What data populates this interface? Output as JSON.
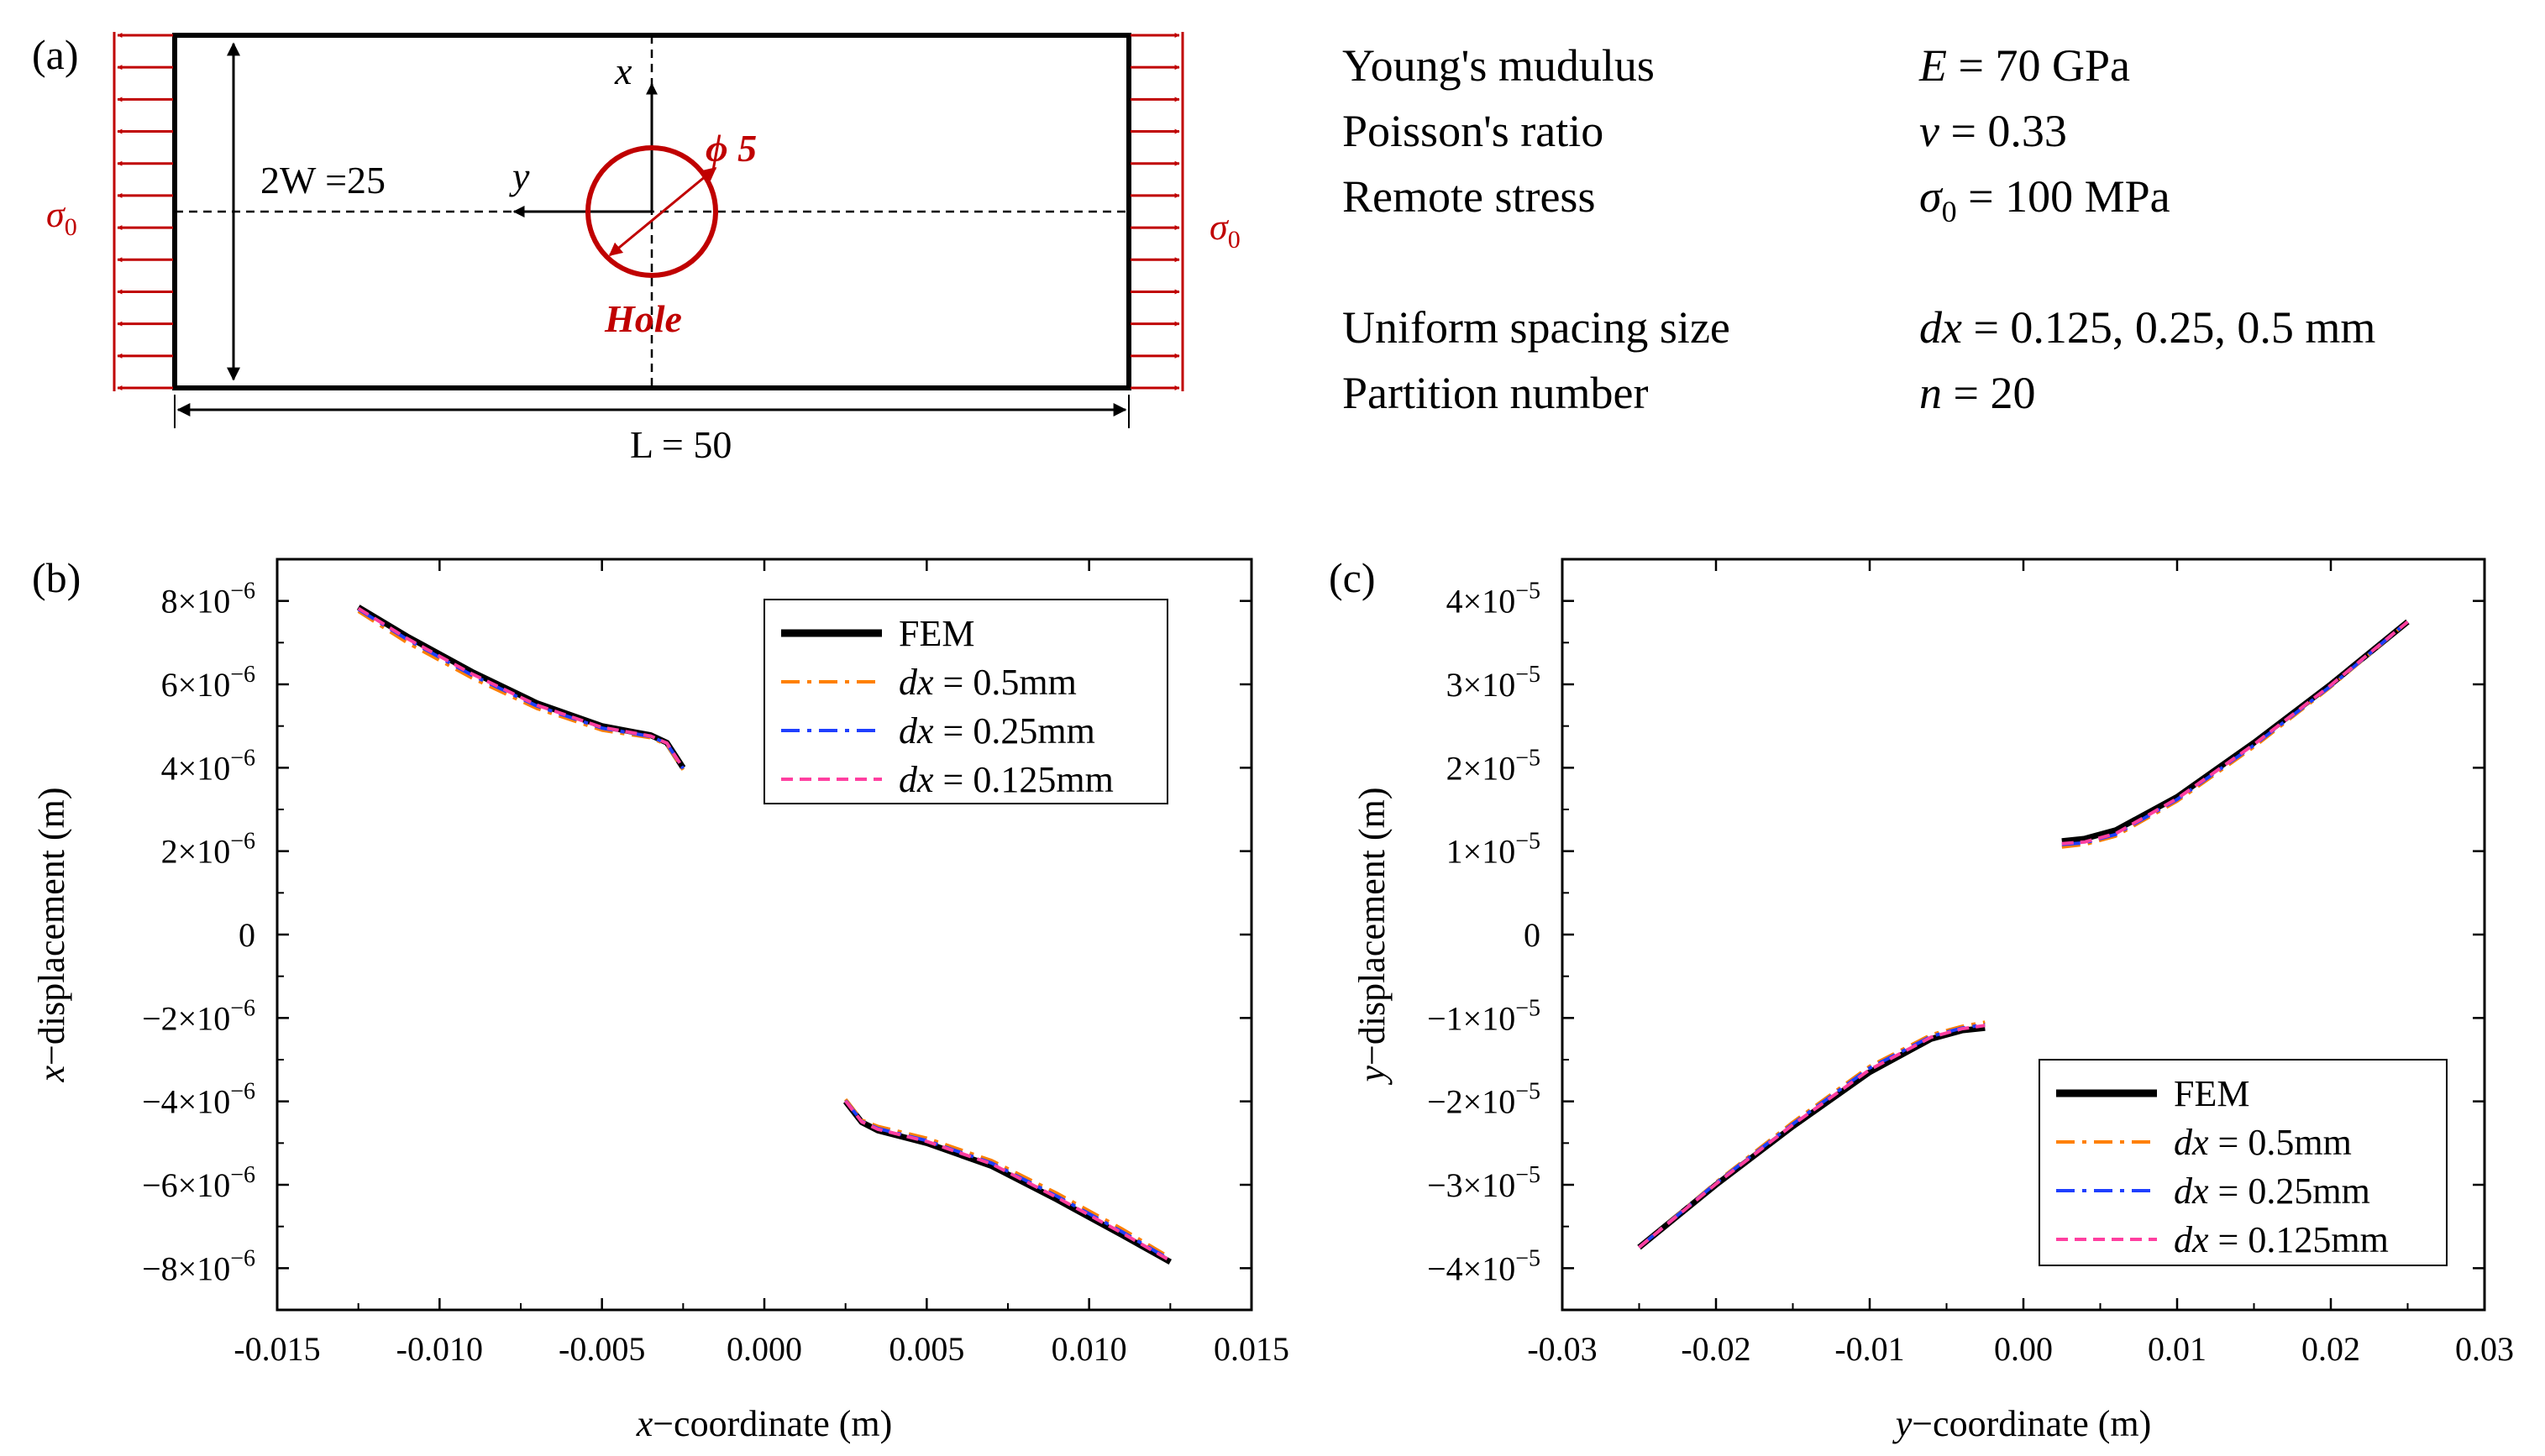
{
  "panel_a": {
    "label": "(a)",
    "x_axis_label": "x",
    "y_axis_label": "y",
    "diameter_label": "ϕ 5",
    "hole_label": "Hole",
    "width_label": "2W =25",
    "length_label": "L = 50",
    "stress_left": "σ0",
    "stress_right": "σ0",
    "colors": {
      "load": "#c00000",
      "plate": "#000000"
    },
    "parameters": [
      {
        "name": "Young's mudulus",
        "value": "E = 70 GPa"
      },
      {
        "name": "Poisson's ratio",
        "value": "ν = 0.33"
      },
      {
        "name": "Remote stress",
        "value": "σ0 = 100 MPa"
      },
      {
        "name": "Uniform spacing size",
        "value": "dx = 0.125, 0.25, 0.5 mm"
      },
      {
        "name": "Partition number",
        "value": "n = 20"
      }
    ]
  },
  "chart_data": [
    {
      "panel": "(b)",
      "type": "line",
      "xlabel": "x−coordinate (m)",
      "ylabel": "x−displacement (m)",
      "xlim": [
        -0.015,
        0.015
      ],
      "ylim": [
        -9e-06,
        9e-06
      ],
      "xticks": [
        -0.015,
        -0.01,
        -0.005,
        0.0,
        0.005,
        0.01,
        0.015
      ],
      "xtick_labels": [
        "-0.015",
        "-0.010",
        "-0.005",
        "0.000",
        "0.005",
        "0.010",
        "0.015"
      ],
      "yticks": [
        8e-06,
        6e-06,
        4e-06,
        2e-06,
        0,
        -2e-06,
        -4e-06,
        -6e-06,
        -8e-06
      ],
      "ytick_labels": [
        {
          "sign": "",
          "mant": "8×10",
          "exp": "−6"
        },
        {
          "sign": "",
          "mant": "6×10",
          "exp": "−6"
        },
        {
          "sign": "",
          "mant": "4×10",
          "exp": "−6"
        },
        {
          "sign": "",
          "mant": "2×10",
          "exp": "−6"
        },
        {
          "sign": "",
          "mant": "0",
          "exp": ""
        },
        {
          "sign": "−",
          "mant": "2×10",
          "exp": "−6"
        },
        {
          "sign": "−",
          "mant": "4×10",
          "exp": "−6"
        },
        {
          "sign": "−",
          "mant": "6×10",
          "exp": "−6"
        },
        {
          "sign": "−",
          "mant": "8×10",
          "exp": "−6"
        }
      ],
      "legend_position": "top-right",
      "series": [
        {
          "name": "FEM",
          "legend_var": "",
          "legend_rest": "FEM",
          "color": "#000000",
          "style": "solid",
          "segments": [
            [
              [
                -0.0125,
                7.85e-06
              ],
              [
                -0.011,
                7.15e-06
              ],
              [
                -0.009,
                6.3e-06
              ],
              [
                -0.007,
                5.55e-06
              ],
              [
                -0.005,
                5e-06
              ],
              [
                -0.0035,
                4.78e-06
              ],
              [
                -0.003,
                4.6e-06
              ],
              [
                -0.0025,
                4e-06
              ]
            ],
            [
              [
                0.0025,
                -4e-06
              ],
              [
                0.003,
                -4.5e-06
              ],
              [
                0.0035,
                -4.7e-06
              ],
              [
                0.005,
                -5e-06
              ],
              [
                0.007,
                -5.55e-06
              ],
              [
                0.009,
                -6.35e-06
              ],
              [
                0.011,
                -7.2e-06
              ],
              [
                0.0125,
                -7.85e-06
              ]
            ]
          ]
        },
        {
          "name": "dx = 0.5mm",
          "legend_var": "dx",
          "legend_rest": " = 0.5mm",
          "color": "#ff8000",
          "style": "dashdot",
          "segments": [
            [
              [
                -0.0125,
                7.75e-06
              ],
              [
                -0.011,
                7e-06
              ],
              [
                -0.009,
                6.15e-06
              ],
              [
                -0.007,
                5.42e-06
              ],
              [
                -0.005,
                4.9e-06
              ],
              [
                -0.0035,
                4.72e-06
              ],
              [
                -0.003,
                4.55e-06
              ],
              [
                -0.0025,
                3.95e-06
              ]
            ],
            [
              [
                0.0025,
                -3.95e-06
              ],
              [
                0.003,
                -4.45e-06
              ],
              [
                0.0035,
                -4.6e-06
              ],
              [
                0.005,
                -4.88e-06
              ],
              [
                0.007,
                -5.42e-06
              ],
              [
                0.009,
                -6.2e-06
              ],
              [
                0.011,
                -7.05e-06
              ],
              [
                0.0125,
                -7.75e-06
              ]
            ]
          ]
        },
        {
          "name": "dx = 0.25mm",
          "legend_var": "dx",
          "legend_rest": " = 0.25mm",
          "color": "#1f3fff",
          "style": "dashdot",
          "segments": [
            [
              [
                -0.0125,
                7.8e-06
              ],
              [
                -0.011,
                7.08e-06
              ],
              [
                -0.009,
                6.22e-06
              ],
              [
                -0.007,
                5.48e-06
              ],
              [
                -0.005,
                4.95e-06
              ],
              [
                -0.0035,
                4.75e-06
              ],
              [
                -0.003,
                4.58e-06
              ],
              [
                -0.0025,
                3.98e-06
              ]
            ],
            [
              [
                0.0025,
                -3.98e-06
              ],
              [
                0.003,
                -4.48e-06
              ],
              [
                0.0035,
                -4.65e-06
              ],
              [
                0.005,
                -4.94e-06
              ],
              [
                0.007,
                -5.48e-06
              ],
              [
                0.009,
                -6.27e-06
              ],
              [
                0.011,
                -7.12e-06
              ],
              [
                0.0125,
                -7.8e-06
              ]
            ]
          ]
        },
        {
          "name": "dx = 0.125mm",
          "legend_var": "dx",
          "legend_rest": " = 0.125mm",
          "color": "#ff3fa0",
          "style": "dashed",
          "segments": [
            [
              [
                -0.0125,
                7.82e-06
              ],
              [
                -0.011,
                7.1e-06
              ],
              [
                -0.009,
                6.25e-06
              ],
              [
                -0.007,
                5.5e-06
              ],
              [
                -0.005,
                4.97e-06
              ],
              [
                -0.0035,
                4.76e-06
              ],
              [
                -0.003,
                4.59e-06
              ],
              [
                -0.0025,
                3.99e-06
              ]
            ],
            [
              [
                0.0025,
                -3.99e-06
              ],
              [
                0.003,
                -4.49e-06
              ],
              [
                0.0035,
                -4.67e-06
              ],
              [
                0.005,
                -4.96e-06
              ],
              [
                0.007,
                -5.5e-06
              ],
              [
                0.009,
                -6.3e-06
              ],
              [
                0.011,
                -7.15e-06
              ],
              [
                0.0125,
                -7.82e-06
              ]
            ]
          ]
        }
      ]
    },
    {
      "panel": "(c)",
      "type": "line",
      "xlabel": "y−coordinate (m)",
      "ylabel": "y−displacement (m)",
      "xlim": [
        -0.03,
        0.03
      ],
      "ylim": [
        -4.5e-05,
        4.5e-05
      ],
      "xticks": [
        -0.03,
        -0.02,
        -0.01,
        0.0,
        0.01,
        0.02,
        0.03
      ],
      "xtick_labels": [
        "-0.03",
        "-0.02",
        "-0.01",
        "0.00",
        "0.01",
        "0.02",
        "0.03"
      ],
      "yticks": [
        4e-05,
        3e-05,
        2e-05,
        1e-05,
        0,
        -1e-05,
        -2e-05,
        -3e-05,
        -4e-05
      ],
      "ytick_labels": [
        {
          "sign": "",
          "mant": "4×10",
          "exp": "−5"
        },
        {
          "sign": "",
          "mant": "3×10",
          "exp": "−5"
        },
        {
          "sign": "",
          "mant": "2×10",
          "exp": "−5"
        },
        {
          "sign": "",
          "mant": "1×10",
          "exp": "−5"
        },
        {
          "sign": "",
          "mant": "0",
          "exp": ""
        },
        {
          "sign": "−",
          "mant": "1×10",
          "exp": "−5"
        },
        {
          "sign": "−",
          "mant": "2×10",
          "exp": "−5"
        },
        {
          "sign": "−",
          "mant": "3×10",
          "exp": "−5"
        },
        {
          "sign": "−",
          "mant": "4×10",
          "exp": "−5"
        }
      ],
      "legend_position": "bottom-right",
      "series": [
        {
          "name": "FEM",
          "legend_var": "",
          "legend_rest": "FEM",
          "color": "#000000",
          "style": "solid",
          "segments": [
            [
              [
                -0.025,
                -3.75e-05
              ],
              [
                -0.02,
                -3e-05
              ],
              [
                -0.015,
                -2.3e-05
              ],
              [
                -0.01,
                -1.65e-05
              ],
              [
                -0.006,
                -1.25e-05
              ],
              [
                -0.004,
                -1.15e-05
              ],
              [
                -0.0025,
                -1.12e-05
              ]
            ],
            [
              [
                0.0025,
                1.12e-05
              ],
              [
                0.004,
                1.15e-05
              ],
              [
                0.006,
                1.25e-05
              ],
              [
                0.01,
                1.65e-05
              ],
              [
                0.015,
                2.3e-05
              ],
              [
                0.02,
                3e-05
              ],
              [
                0.025,
                3.75e-05
              ]
            ]
          ]
        },
        {
          "name": "dx = 0.5mm",
          "legend_var": "dx",
          "legend_rest": " = 0.5mm",
          "color": "#ff8000",
          "style": "dashdot",
          "segments": [
            [
              [
                -0.025,
                -3.75e-05
              ],
              [
                -0.02,
                -2.97e-05
              ],
              [
                -0.015,
                -2.25e-05
              ],
              [
                -0.01,
                -1.58e-05
              ],
              [
                -0.006,
                -1.2e-05
              ],
              [
                -0.004,
                -1.1e-05
              ],
              [
                -0.0025,
                -1.05e-05
              ]
            ],
            [
              [
                0.0025,
                1.05e-05
              ],
              [
                0.004,
                1.08e-05
              ],
              [
                0.006,
                1.18e-05
              ],
              [
                0.01,
                1.6e-05
              ],
              [
                0.015,
                2.25e-05
              ],
              [
                0.02,
                2.97e-05
              ],
              [
                0.025,
                3.75e-05
              ]
            ]
          ]
        },
        {
          "name": "dx = 0.25mm",
          "legend_var": "dx",
          "legend_rest": " = 0.25mm",
          "color": "#1f3fff",
          "style": "dashdot",
          "segments": [
            [
              [
                -0.025,
                -3.75e-05
              ],
              [
                -0.02,
                -2.98e-05
              ],
              [
                -0.015,
                -2.27e-05
              ],
              [
                -0.01,
                -1.6e-05
              ],
              [
                -0.006,
                -1.22e-05
              ],
              [
                -0.004,
                -1.12e-05
              ],
              [
                -0.0025,
                -1.08e-05
              ]
            ],
            [
              [
                0.0025,
                1.08e-05
              ],
              [
                0.004,
                1.1e-05
              ],
              [
                0.006,
                1.2e-05
              ],
              [
                0.01,
                1.62e-05
              ],
              [
                0.015,
                2.27e-05
              ],
              [
                0.02,
                2.98e-05
              ],
              [
                0.025,
                3.75e-05
              ]
            ]
          ]
        },
        {
          "name": "dx = 0.125mm",
          "legend_var": "dx",
          "legend_rest": " = 0.125mm",
          "color": "#ff3fa0",
          "style": "dashed",
          "segments": [
            [
              [
                -0.025,
                -3.75e-05
              ],
              [
                -0.02,
                -2.99e-05
              ],
              [
                -0.015,
                -2.28e-05
              ],
              [
                -0.01,
                -1.62e-05
              ],
              [
                -0.006,
                -1.23e-05
              ],
              [
                -0.004,
                -1.13e-05
              ],
              [
                -0.0025,
                -1.09e-05
              ]
            ],
            [
              [
                0.0025,
                1.09e-05
              ],
              [
                0.004,
                1.11e-05
              ],
              [
                0.006,
                1.21e-05
              ],
              [
                0.01,
                1.63e-05
              ],
              [
                0.015,
                2.28e-05
              ],
              [
                0.02,
                2.99e-05
              ],
              [
                0.025,
                3.75e-05
              ]
            ]
          ]
        }
      ]
    }
  ]
}
